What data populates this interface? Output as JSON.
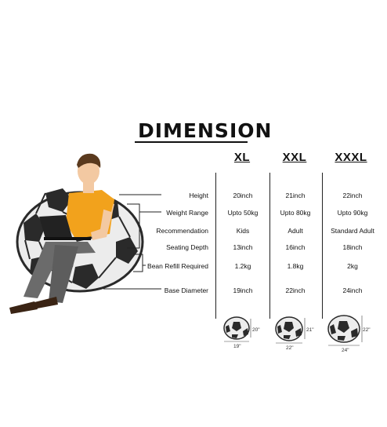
{
  "title": "DIMENSION",
  "columns": [
    "XL",
    "XXL",
    "XXXL"
  ],
  "rows": [
    {
      "label": "Height",
      "values": [
        "20inch",
        "21inch",
        "22inch"
      ]
    },
    {
      "label": "Weight Range",
      "values": [
        "Upto 50kg",
        "Upto 80kg",
        "Upto 90kg"
      ]
    },
    {
      "label": "Recommendation",
      "values": [
        "Kids",
        "Adult",
        "Standard Adult"
      ]
    },
    {
      "label": "Seating Depth",
      "values": [
        "13inch",
        "16inch",
        "18inch"
      ]
    },
    {
      "label": "Bean Refill Required",
      "values": [
        "1.2kg",
        "1.8kg",
        "2kg"
      ]
    },
    {
      "label": "Base Diameter",
      "values": [
        "19inch",
        "22inch",
        "24inch"
      ]
    }
  ],
  "thumbnails": [
    {
      "height": "20\"",
      "width": "19\""
    },
    {
      "height": "21\"",
      "width": "22\""
    },
    {
      "height": "22\"",
      "width": "24\""
    }
  ],
  "colors": {
    "shirt": "#f2a21c",
    "pants": "#6b6b6b",
    "skin": "#f3c9a2",
    "hair": "#5a3a1e",
    "laptop": "#222222",
    "ball_dark": "#2a2a2a",
    "ball_light": "#ececec"
  }
}
